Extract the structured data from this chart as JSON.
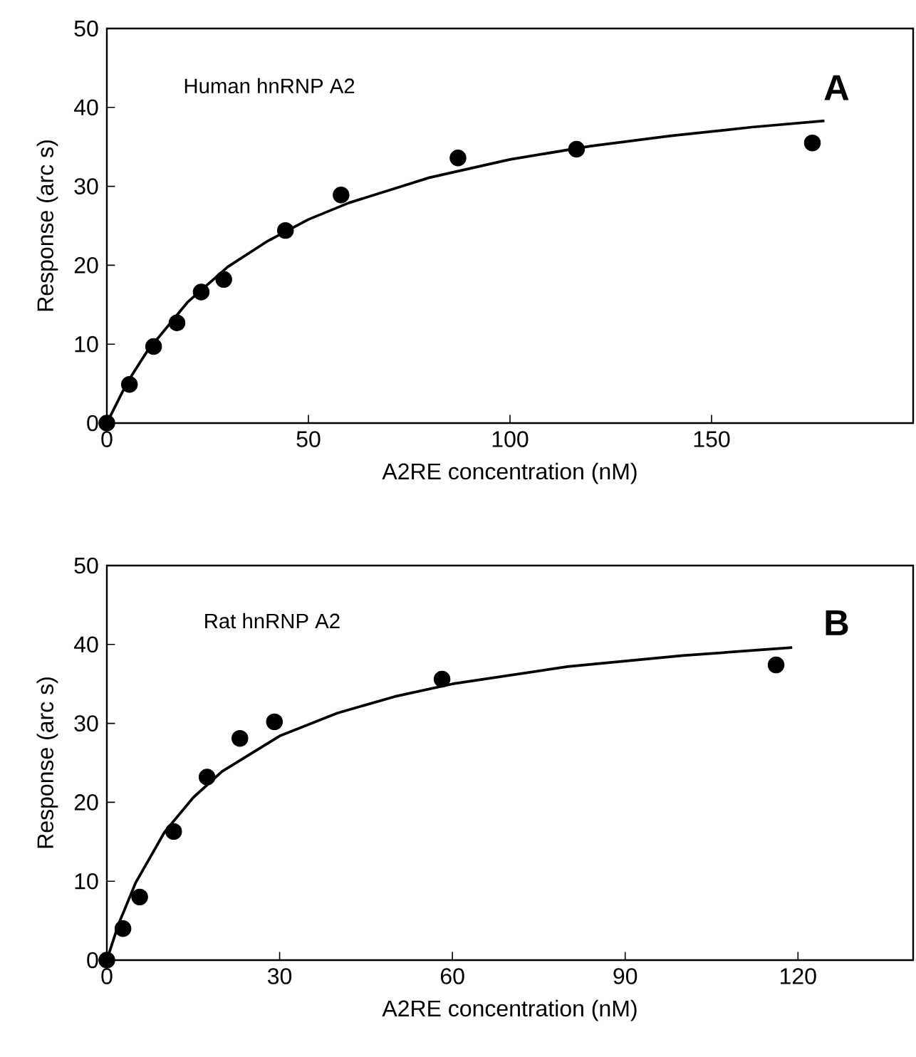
{
  "chart_data": [
    {
      "type": "scatter",
      "xlabel": "A2RE concentration (nM)",
      "ylabel": "Response (arc s)",
      "annotations": [
        "Human hnRNP A2",
        "A"
      ],
      "xlim": [
        0,
        200
      ],
      "ylim": [
        0,
        50
      ],
      "xticks": [
        0,
        50,
        100,
        150
      ],
      "yticks": [
        0,
        10,
        20,
        30,
        40,
        50
      ],
      "series": [
        {
          "marker": "circle",
          "color": "#000000",
          "x": [
            0,
            5.6,
            11.6,
            17.4,
            23.4,
            29,
            44.3,
            58.1,
            87.1,
            116.5,
            175
          ],
          "values": [
            0,
            4.9,
            9.7,
            12.7,
            16.6,
            18.2,
            24.4,
            28.9,
            33.6,
            34.7,
            35.5
          ]
        },
        {
          "type": "line",
          "marker": "none",
          "color": "#000000",
          "x": [
            0,
            5,
            10,
            20,
            30,
            40,
            50,
            60,
            80,
            100,
            120,
            140,
            160,
            178
          ],
          "values": [
            0,
            5.1,
            9.1,
            15.3,
            19.8,
            23.1,
            25.8,
            27.9,
            31.1,
            33.4,
            35.1,
            36.4,
            37.5,
            38.3
          ]
        }
      ]
    },
    {
      "type": "scatter",
      "xlabel": "A2RE concentration (nM)",
      "ylabel": "Response (arc s)",
      "annotations": [
        "Rat hnRNP A2",
        "B"
      ],
      "xlim": [
        0,
        140
      ],
      "ylim": [
        0,
        50
      ],
      "xticks": [
        0,
        30,
        60,
        90,
        120
      ],
      "yticks": [
        0,
        10,
        20,
        30,
        40,
        50
      ],
      "series": [
        {
          "marker": "circle",
          "color": "#000000",
          "x": [
            0,
            2.8,
            5.7,
            11.6,
            17.4,
            23.1,
            29.1,
            58.2,
            116.2
          ],
          "values": [
            0,
            4.0,
            8.0,
            16.3,
            23.2,
            28.1,
            30.2,
            35.6,
            37.4
          ]
        },
        {
          "type": "line",
          "marker": "none",
          "color": "#000000",
          "x": [
            0,
            2,
            5,
            10,
            15,
            20,
            30,
            40,
            50,
            60,
            80,
            100,
            119
          ],
          "values": [
            0,
            4.5,
            9.8,
            16.2,
            20.6,
            23.9,
            28.4,
            31.3,
            33.4,
            35.0,
            37.2,
            38.6,
            39.6
          ]
        }
      ]
    }
  ]
}
